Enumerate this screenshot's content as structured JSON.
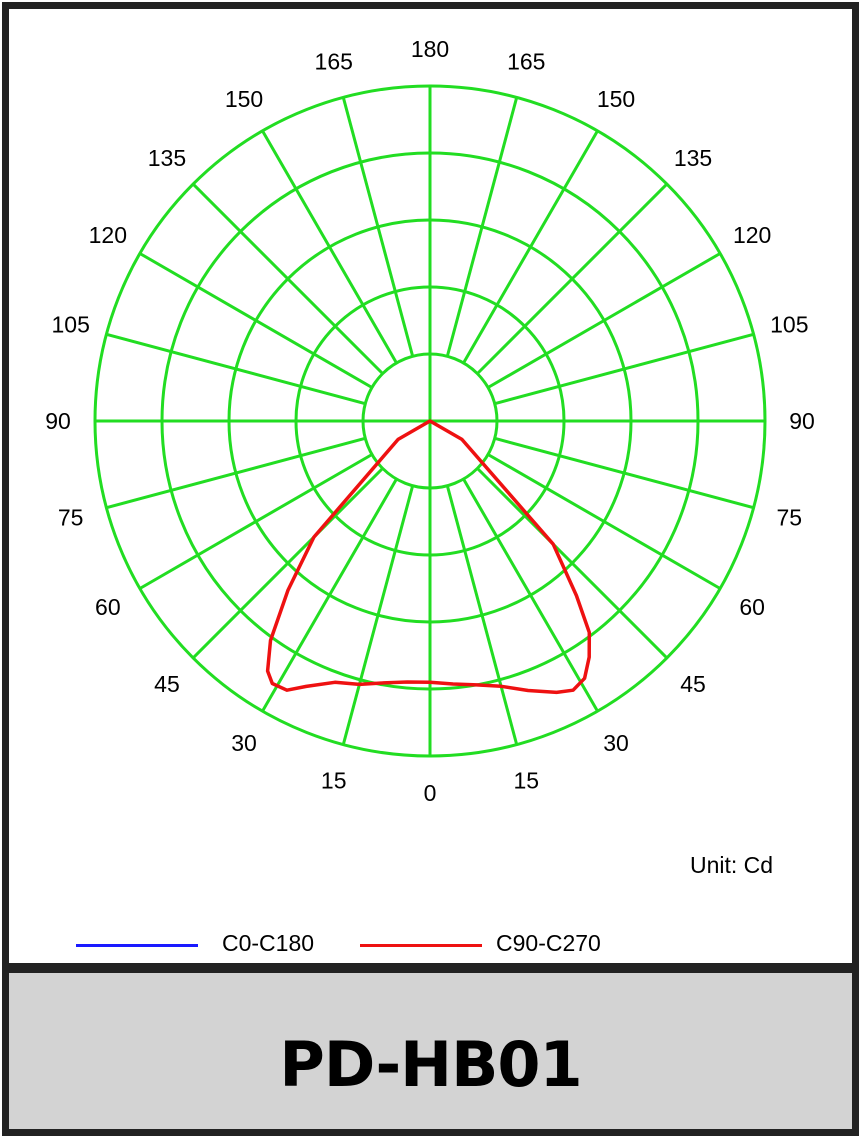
{
  "chart_data": {
    "type": "polar",
    "angular_labels": [
      "180",
      "165",
      "150",
      "135",
      "120",
      "105",
      "90",
      "75",
      "60",
      "45",
      "30",
      "15",
      "0",
      "15",
      "30",
      "45",
      "60",
      "75",
      "90",
      "105",
      "120",
      "135",
      "150",
      "165"
    ],
    "angle_step_deg": 15,
    "radial_rings": 5,
    "radial_max": 5,
    "grid": true,
    "grid_color": "#22dd22",
    "unit": "Unit: Cd",
    "series": [
      {
        "name": "C0-C180",
        "color": "#1a1aff",
        "points": []
      },
      {
        "name": "C90-C270",
        "color": "#ee1111",
        "points": [
          {
            "angle": -90,
            "r": 0.0
          },
          {
            "angle": -60,
            "r": 0.55
          },
          {
            "angle": -45,
            "r": 2.45
          },
          {
            "angle": -40,
            "r": 3.3
          },
          {
            "angle": -36,
            "r": 4.05
          },
          {
            "angle": -33,
            "r": 4.45
          },
          {
            "angle": -31,
            "r": 4.57
          },
          {
            "angle": -28,
            "r": 4.55
          },
          {
            "angle": -25,
            "r": 4.37
          },
          {
            "angle": -20,
            "r": 4.15
          },
          {
            "angle": -15,
            "r": 4.07
          },
          {
            "angle": -10,
            "r": 3.97
          },
          {
            "angle": -5,
            "r": 3.91
          },
          {
            "angle": 0,
            "r": 3.9
          },
          {
            "angle": 5,
            "r": 3.94
          },
          {
            "angle": 10,
            "r": 4.0
          },
          {
            "angle": 15,
            "r": 4.1
          },
          {
            "angle": 20,
            "r": 4.28
          },
          {
            "angle": 25,
            "r": 4.47
          },
          {
            "angle": 28,
            "r": 4.55
          },
          {
            "angle": 31,
            "r": 4.48
          },
          {
            "angle": 34,
            "r": 4.25
          },
          {
            "angle": 37,
            "r": 3.95
          },
          {
            "angle": 40,
            "r": 3.4
          },
          {
            "angle": 45,
            "r": 2.6
          },
          {
            "angle": 60,
            "r": 0.55
          },
          {
            "angle": 90,
            "r": 0.0
          }
        ]
      }
    ]
  },
  "legend": [
    {
      "label": "C0-C180",
      "color": "#1a1aff"
    },
    {
      "label": "C90-C270",
      "color": "#ee1111"
    }
  ],
  "model": "PD-HB01"
}
